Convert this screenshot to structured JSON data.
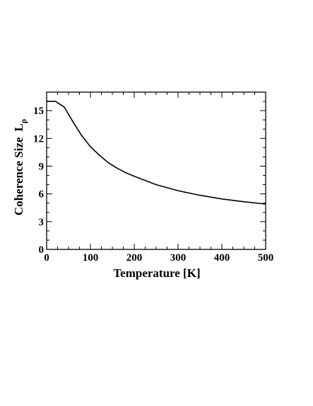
{
  "chart_data": {
    "type": "line",
    "title": "",
    "xlabel": "Temperature [K]",
    "ylabel": "Coherence Size",
    "ylabel_symbol": "L",
    "ylabel_subscript": "ρ",
    "xlim": [
      0,
      500
    ],
    "ylim": [
      0,
      17
    ],
    "xticks": [
      0,
      100,
      200,
      300,
      400,
      500
    ],
    "yticks": [
      0,
      3,
      6,
      9,
      12,
      15
    ],
    "grid": false,
    "series": [
      {
        "color": "#000000",
        "x": [
          0,
          20,
          40,
          60,
          80,
          100,
          120,
          140,
          160,
          180,
          200,
          250,
          300,
          350,
          400,
          450,
          500
        ],
        "y": [
          16.0,
          16.0,
          15.4,
          13.8,
          12.3,
          11.1,
          10.2,
          9.4,
          8.8,
          8.3,
          7.9,
          7.0,
          6.35,
          5.85,
          5.45,
          5.15,
          4.9
        ]
      }
    ]
  }
}
